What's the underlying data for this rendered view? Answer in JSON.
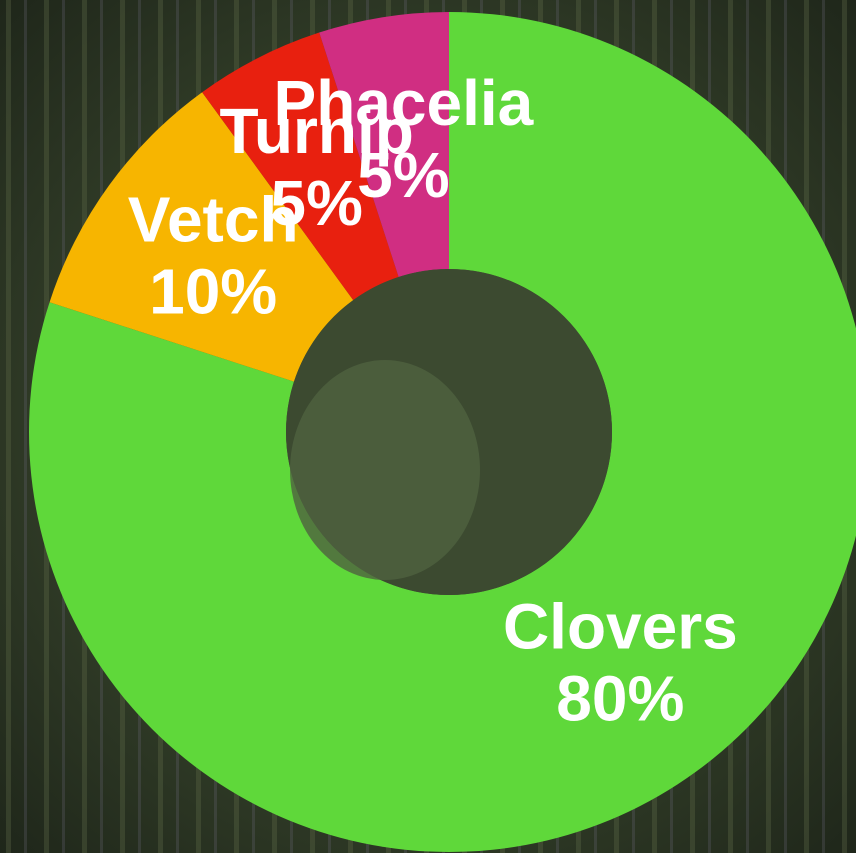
{
  "chart_data": {
    "type": "donut",
    "categories": [
      "Clovers",
      "Vetch",
      "Turnip",
      "Phacelia"
    ],
    "values": [
      80,
      10,
      5,
      5
    ],
    "value_labels": [
      "80%",
      "10%",
      "5%",
      "5%"
    ],
    "colors": [
      "#5fd83a",
      "#f7b500",
      "#e8200f",
      "#d02e82"
    ]
  }
}
